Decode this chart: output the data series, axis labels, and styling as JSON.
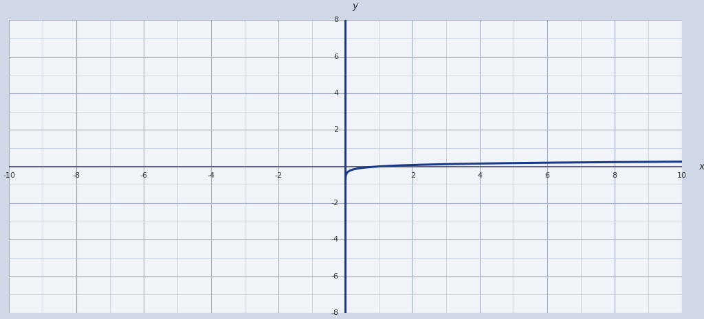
{
  "title": "",
  "xlim": [
    -10,
    10
  ],
  "ylim": [
    -8,
    8
  ],
  "xticks": [
    -10,
    -8,
    -6,
    -4,
    -2,
    2,
    4,
    6,
    8,
    10
  ],
  "yticks": [
    -8,
    -6,
    -4,
    -2,
    2,
    4,
    6,
    8
  ],
  "xlabel": "x",
  "ylabel": "y",
  "curve_color": "#1a3a8a",
  "asymptote_color": "#1a3a8a",
  "grid_color": "#c0c8d8",
  "grid_major_color": "#a0aac0",
  "axis_color": "#1a3a8a",
  "bg_color": "#e8eef5",
  "plot_bg_color": "#f0f4f8",
  "minor_grid_divisions": 5,
  "figsize": [
    10.24,
    4.65
  ],
  "dpi": 100,
  "coefficient": 0.125,
  "log_base": 3
}
